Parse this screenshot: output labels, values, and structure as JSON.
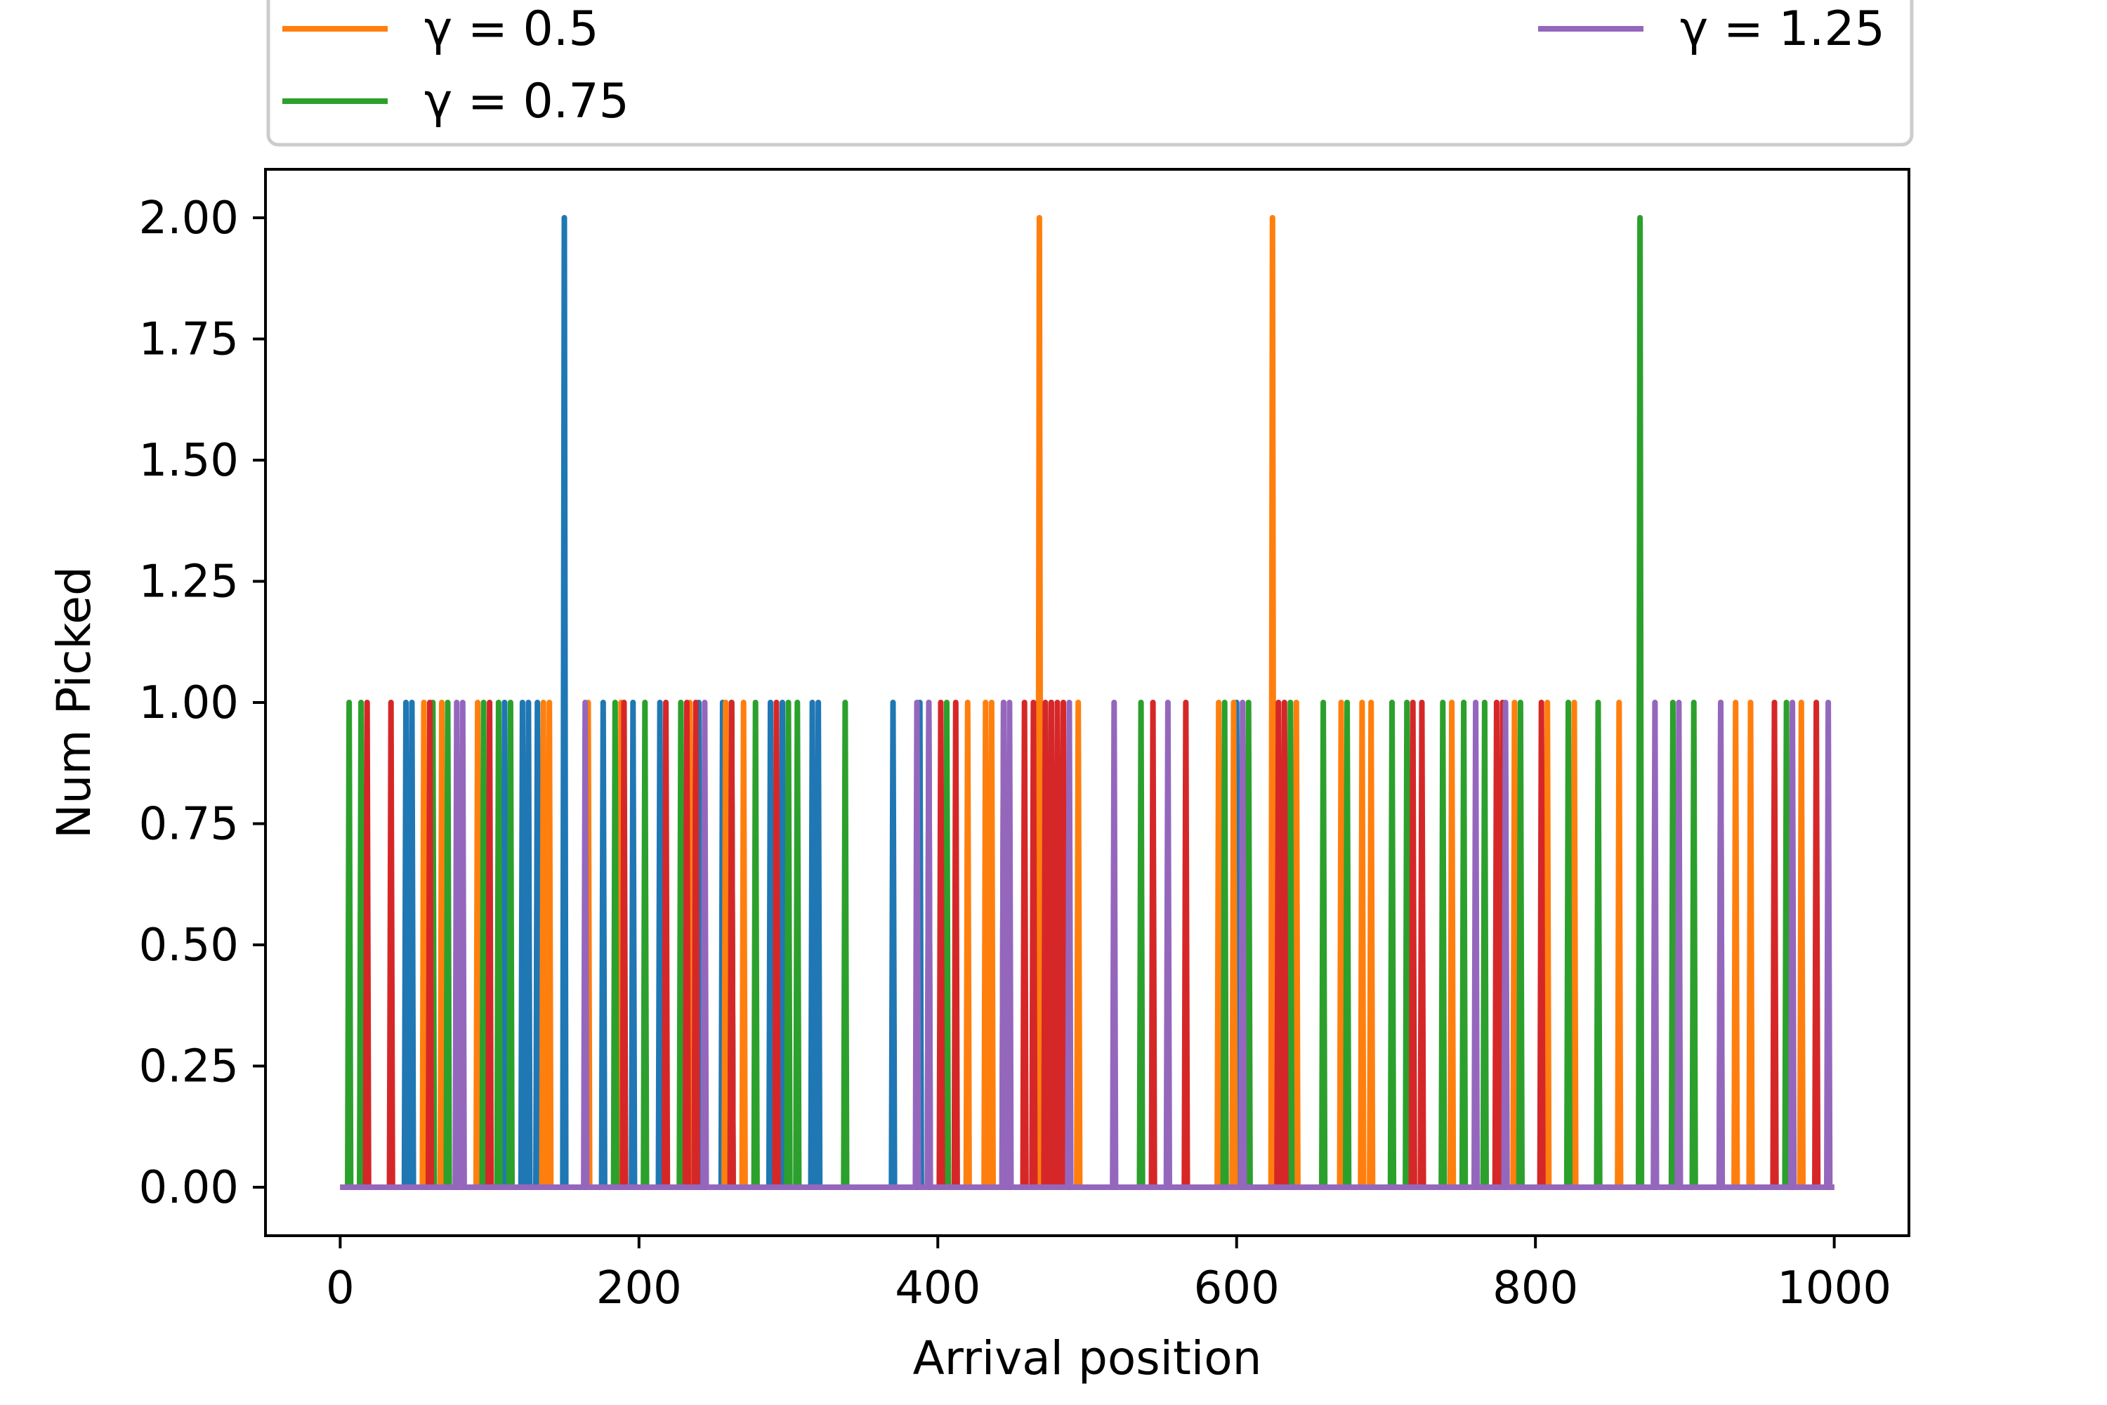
{
  "chart_data": {
    "type": "line",
    "title": "",
    "xlabel": "Arrival position",
    "ylabel": "Num Picked",
    "xlim": [
      -50,
      1050
    ],
    "ylim": [
      -0.1,
      2.1
    ],
    "xticks": [
      0,
      200,
      400,
      600,
      800,
      1000
    ],
    "yticks": [
      0.0,
      0.25,
      0.5,
      0.75,
      1.0,
      1.25,
      1.5,
      1.75,
      2.0
    ],
    "xtick_labels": [
      "0",
      "200",
      "400",
      "600",
      "800",
      "1000"
    ],
    "ytick_labels": [
      "0.00",
      "0.25",
      "0.50",
      "0.75",
      "1.00",
      "1.25",
      "1.50",
      "1.75",
      "2.00"
    ],
    "grid": false,
    "legend_position": "above plot",
    "legend_entries_visible": [
      {
        "label": "γ = 0.5",
        "color": "#ff7f0e"
      },
      {
        "label": "γ = 0.75",
        "color": "#2ca02c"
      },
      {
        "label": "γ = 1.25",
        "color": "#9467bd"
      }
    ],
    "x_domain": [
      0,
      1000
    ],
    "series": [
      {
        "color": "#1f77b4",
        "picks": [
          [
            44,
            1
          ],
          [
            48,
            1
          ],
          [
            110,
            1
          ],
          [
            122,
            1
          ],
          [
            126,
            1
          ],
          [
            132,
            1
          ],
          [
            150,
            2
          ],
          [
            176,
            1
          ],
          [
            196,
            1
          ],
          [
            214,
            1
          ],
          [
            240,
            1
          ],
          [
            256,
            1
          ],
          [
            262,
            1
          ],
          [
            288,
            1
          ],
          [
            296,
            1
          ],
          [
            316,
            1
          ],
          [
            320,
            1
          ],
          [
            370,
            1
          ],
          [
            388,
            1
          ],
          [
            394,
            1
          ],
          [
            476,
            1
          ],
          [
            600,
            1
          ]
        ]
      },
      {
        "color": "#ff7f0e",
        "picks": [
          [
            56,
            1
          ],
          [
            68,
            1
          ],
          [
            92,
            1
          ],
          [
            136,
            1
          ],
          [
            140,
            1
          ],
          [
            166,
            1
          ],
          [
            188,
            1
          ],
          [
            234,
            1
          ],
          [
            258,
            1
          ],
          [
            270,
            1
          ],
          [
            420,
            1
          ],
          [
            432,
            1
          ],
          [
            436,
            1
          ],
          [
            468,
            2
          ],
          [
            494,
            1
          ],
          [
            588,
            1
          ],
          [
            598,
            1
          ],
          [
            624,
            2
          ],
          [
            640,
            1
          ],
          [
            670,
            1
          ],
          [
            684,
            1
          ],
          [
            690,
            1
          ],
          [
            744,
            1
          ],
          [
            786,
            1
          ],
          [
            808,
            1
          ],
          [
            826,
            1
          ],
          [
            856,
            1
          ],
          [
            924,
            1
          ],
          [
            934,
            1
          ],
          [
            944,
            1
          ],
          [
            978,
            1
          ]
        ]
      },
      {
        "color": "#2ca02c",
        "picks": [
          [
            6,
            1
          ],
          [
            14,
            1
          ],
          [
            62,
            1
          ],
          [
            72,
            1
          ],
          [
            96,
            1
          ],
          [
            106,
            1
          ],
          [
            114,
            1
          ],
          [
            184,
            1
          ],
          [
            204,
            1
          ],
          [
            228,
            1
          ],
          [
            262,
            1
          ],
          [
            278,
            1
          ],
          [
            300,
            1
          ],
          [
            306,
            1
          ],
          [
            338,
            1
          ],
          [
            406,
            1
          ],
          [
            536,
            1
          ],
          [
            592,
            1
          ],
          [
            608,
            1
          ],
          [
            636,
            1
          ],
          [
            658,
            1
          ],
          [
            674,
            1
          ],
          [
            704,
            1
          ],
          [
            714,
            1
          ],
          [
            738,
            1
          ],
          [
            752,
            1
          ],
          [
            766,
            1
          ],
          [
            790,
            1
          ],
          [
            822,
            1
          ],
          [
            842,
            1
          ],
          [
            870,
            2
          ],
          [
            892,
            1
          ],
          [
            906,
            1
          ],
          [
            968,
            1
          ]
        ]
      },
      {
        "color": "#d62728",
        "picks": [
          [
            18,
            1
          ],
          [
            34,
            1
          ],
          [
            60,
            1
          ],
          [
            100,
            1
          ],
          [
            190,
            1
          ],
          [
            218,
            1
          ],
          [
            232,
            1
          ],
          [
            238,
            1
          ],
          [
            262,
            1
          ],
          [
            292,
            1
          ],
          [
            402,
            1
          ],
          [
            412,
            1
          ],
          [
            444,
            1
          ],
          [
            458,
            1
          ],
          [
            464,
            1
          ],
          [
            472,
            1
          ],
          [
            476,
            1
          ],
          [
            480,
            1
          ],
          [
            484,
            1
          ],
          [
            544,
            1
          ],
          [
            566,
            1
          ],
          [
            628,
            1
          ],
          [
            632,
            1
          ],
          [
            718,
            1
          ],
          [
            724,
            1
          ],
          [
            774,
            1
          ],
          [
            778,
            1
          ],
          [
            804,
            1
          ],
          [
            960,
            1
          ],
          [
            988,
            1
          ]
        ]
      },
      {
        "color": "#9467bd",
        "picks": [
          [
            78,
            1
          ],
          [
            82,
            1
          ],
          [
            164,
            1
          ],
          [
            244,
            1
          ],
          [
            386,
            1
          ],
          [
            394,
            1
          ],
          [
            444,
            1
          ],
          [
            448,
            1
          ],
          [
            488,
            1
          ],
          [
            518,
            1
          ],
          [
            554,
            1
          ],
          [
            604,
            1
          ],
          [
            760,
            1
          ],
          [
            780,
            1
          ],
          [
            880,
            1
          ],
          [
            896,
            1
          ],
          [
            924,
            1
          ],
          [
            972,
            1
          ],
          [
            996,
            1
          ]
        ]
      }
    ]
  }
}
